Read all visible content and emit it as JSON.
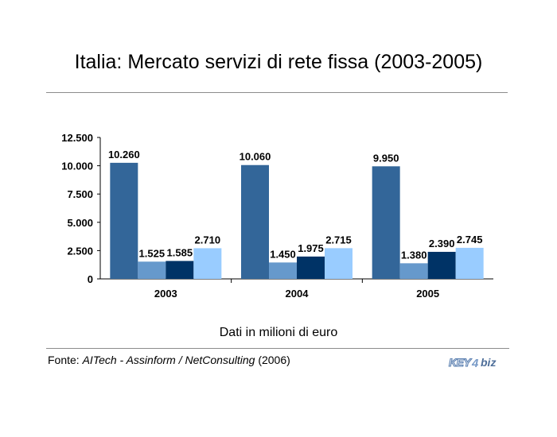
{
  "header": {
    "title": "Italia: Mercato servizi di rete fissa (2003-2005)"
  },
  "chart_data": {
    "type": "bar",
    "categories": [
      "2003",
      "2004",
      "2005"
    ],
    "series": [
      {
        "values": [
          10260,
          10060,
          9950
        ],
        "labels": [
          "10.260",
          "10.060",
          "9.950"
        ],
        "color": "#336699"
      },
      {
        "values": [
          1525,
          1450,
          1380
        ],
        "labels": [
          "1.525",
          "1.450",
          "1.380"
        ],
        "color": "#6699cc"
      },
      {
        "values": [
          1585,
          1975,
          2390
        ],
        "labels": [
          "1.585",
          "1.975",
          "2.390"
        ],
        "color": "#003366"
      },
      {
        "values": [
          2710,
          2715,
          2745
        ],
        "labels": [
          "2.710",
          "2.715",
          "2.745"
        ],
        "color": "#99ccff"
      }
    ],
    "ylim": [
      0,
      12500
    ],
    "yticks": [
      0,
      2500,
      5000,
      7500,
      10000,
      12500
    ],
    "ytick_labels": [
      "0",
      "2.500",
      "5.000",
      "7.500",
      "10.000",
      "12.500"
    ],
    "grid": false,
    "legend": "none"
  },
  "footer": {
    "note": "Dati in milioni di euro",
    "source_prefix": "Fonte: ",
    "source_italic": "AITech - Assinform / NetConsulting",
    "source_suffix": " (2006)",
    "logo_text": "KEY4biz"
  }
}
